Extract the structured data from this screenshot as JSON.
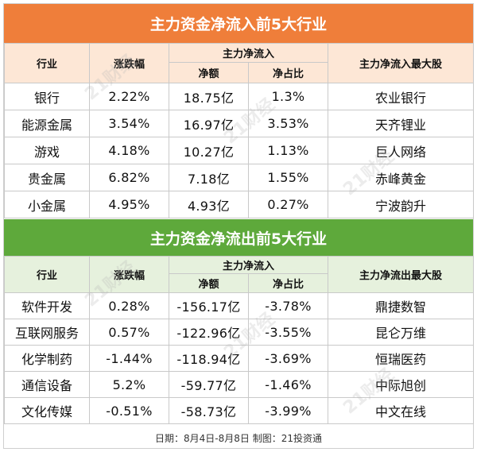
{
  "inflow": {
    "title": "主力资金净流入前5大行业",
    "headers": {
      "industry": "行业",
      "change": "涨跌幅",
      "main_flow": "主力净流入",
      "net_amount": "净额",
      "net_ratio": "净占比",
      "top_stock": "主力净流入最大股"
    },
    "rows": [
      {
        "industry": "银行",
        "change": "2.22%",
        "net_amount": "18.75亿",
        "net_ratio": "1.3%",
        "top_stock": "农业银行"
      },
      {
        "industry": "能源金属",
        "change": "3.54%",
        "net_amount": "16.97亿",
        "net_ratio": "3.53%",
        "top_stock": "天齐锂业"
      },
      {
        "industry": "游戏",
        "change": "4.18%",
        "net_amount": "10.27亿",
        "net_ratio": "1.13%",
        "top_stock": "巨人网络"
      },
      {
        "industry": "贵金属",
        "change": "6.82%",
        "net_amount": "7.18亿",
        "net_ratio": "1.55%",
        "top_stock": "赤峰黄金"
      },
      {
        "industry": "小金属",
        "change": "4.95%",
        "net_amount": "4.93亿",
        "net_ratio": "0.27%",
        "top_stock": "宁波韵升"
      }
    ]
  },
  "outflow": {
    "title": "主力资金净流出前5大行业",
    "headers": {
      "industry": "行业",
      "change": "涨跌幅",
      "main_flow": "主力净流入",
      "net_amount": "净额",
      "net_ratio": "净占比",
      "top_stock": "主力净流出最大股"
    },
    "rows": [
      {
        "industry": "软件开发",
        "change": "0.28%",
        "net_amount": "-156.17亿",
        "net_ratio": "-3.78%",
        "top_stock": "鼎捷数智"
      },
      {
        "industry": "互联网服务",
        "change": "0.57%",
        "net_amount": "-122.96亿",
        "net_ratio": "-3.55%",
        "top_stock": "昆仑万维"
      },
      {
        "industry": "化学制药",
        "change": "-1.44%",
        "net_amount": "-118.94亿",
        "net_ratio": "-3.69%",
        "top_stock": "恒瑞医药"
      },
      {
        "industry": "通信设备",
        "change": "5.2%",
        "net_amount": "-59.77亿",
        "net_ratio": "-1.46%",
        "top_stock": "中际旭创"
      },
      {
        "industry": "文化传媒",
        "change": "-0.51%",
        "net_amount": "-58.73亿",
        "net_ratio": "-3.99%",
        "top_stock": "中文在线"
      }
    ]
  },
  "footer": "日期：8月4日-8月8日 制图：21投资通",
  "watermark": "21财经",
  "colors": {
    "inflow_banner": "#ef7e3a",
    "inflow_header_bg": "#fde7d6",
    "outflow_banner": "#5ea93b",
    "outflow_header_bg": "#e6f1dd"
  }
}
